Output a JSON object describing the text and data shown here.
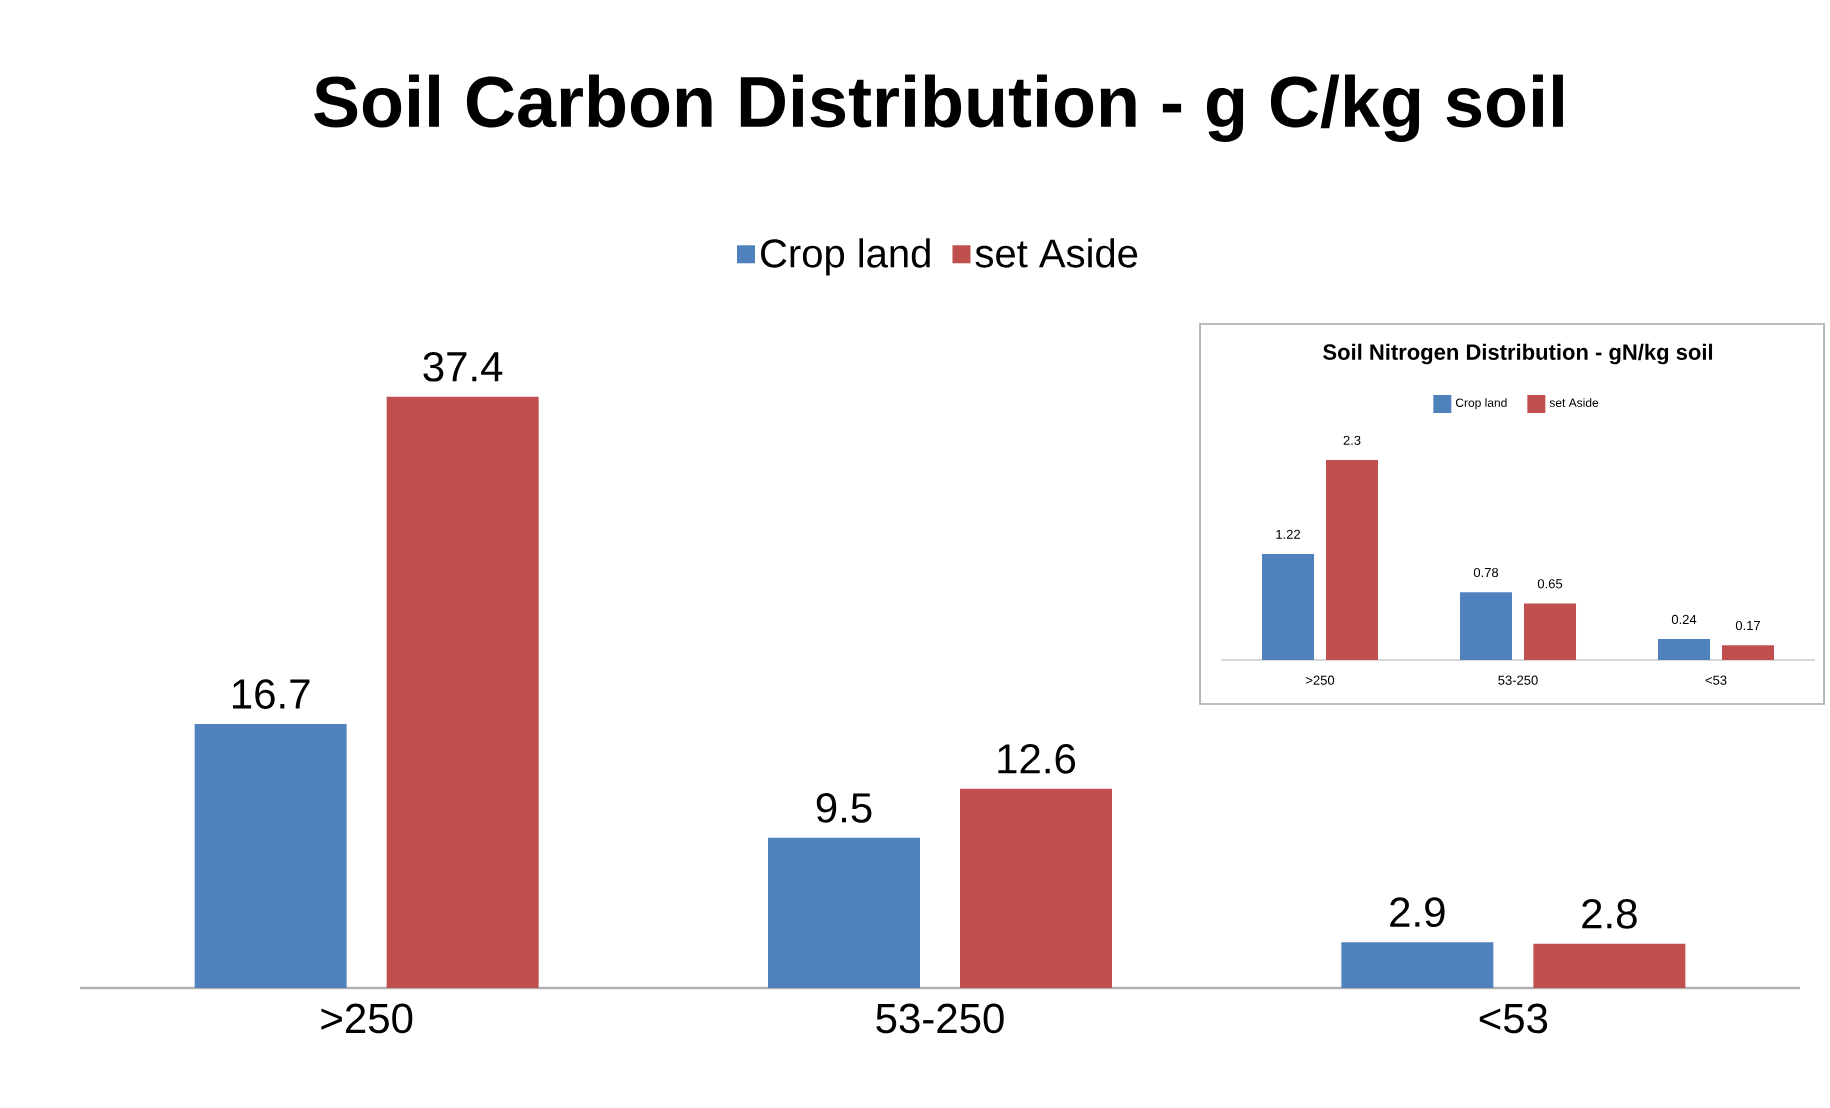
{
  "chart_data": [
    {
      "type": "bar",
      "title": "Soil Carbon Distribution - g C/kg soil",
      "categories": [
        ">250",
        "53-250",
        "<53"
      ],
      "legend": "top",
      "data_labels": true,
      "series": [
        {
          "name": "Crop land",
          "color": "#4f81bd",
          "values": [
            16.7,
            9.5,
            2.9
          ]
        },
        {
          "name": "set Aside",
          "color": "#c0504d",
          "values": [
            37.4,
            12.6,
            2.8
          ]
        }
      ]
    },
    {
      "type": "bar",
      "title": "Soil Nitrogen Distribution - gN/kg soil",
      "categories": [
        ">250",
        "53-250",
        "<53"
      ],
      "legend": "top",
      "data_labels": true,
      "series": [
        {
          "name": "Crop land",
          "color": "#4f81bd",
          "values": [
            1.22,
            0.78,
            0.24
          ]
        },
        {
          "name": "set Aside",
          "color": "#c0504d",
          "values": [
            2.3,
            0.65,
            0.17
          ]
        }
      ]
    }
  ]
}
